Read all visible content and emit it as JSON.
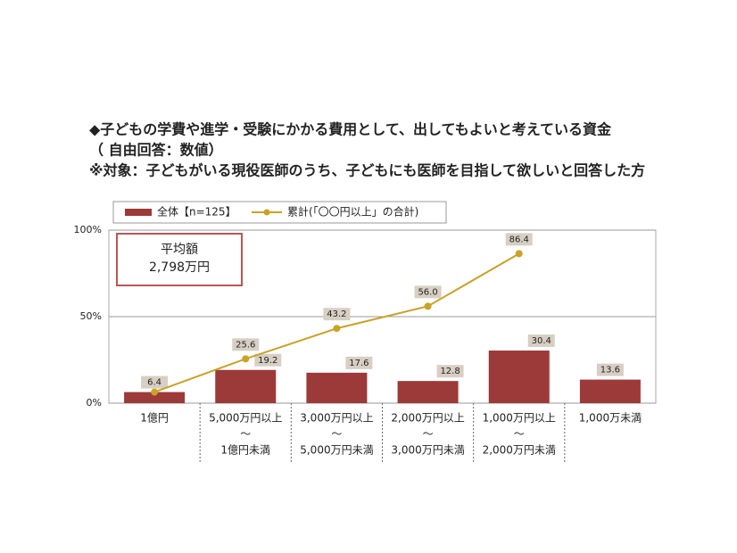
{
  "chart_data": {
    "type": "bar-line",
    "title_lines": [
      "◆子どもの学費や進学・受験にかかる費用として、出してもよいと考えている資金",
      "（ 自由回答：数値）",
      "※対象：子どもがいる現役医師のうち、子どもにも医師を目指して欲しいと回答した方"
    ],
    "annotation": [
      "平均額",
      "2,798万円"
    ],
    "categories": [
      [
        "1億円"
      ],
      [
        "5,000万円以上",
        "～",
        "1億円未満"
      ],
      [
        "3,000万円以上",
        "～",
        "5,000万円未満"
      ],
      [
        "2,000万円以上",
        "～",
        "3,000万円未満"
      ],
      [
        "1,000万円以上",
        "～",
        "2,000万円未満"
      ],
      [
        "1,000万未満"
      ]
    ],
    "series": [
      {
        "name": "全体【n=125】",
        "color": "#9b3a38",
        "kind": "bar",
        "values": [
          6.4,
          19.2,
          17.6,
          12.8,
          30.4,
          13.6
        ]
      },
      {
        "name": "累計(「〇〇円以上」の合計)",
        "color": "#c9a227",
        "kind": "line",
        "values": [
          6.4,
          25.6,
          43.2,
          56.0,
          86.4,
          null
        ],
        "value_labels": [
          null,
          "25.6",
          "43.2",
          "56.0",
          "86.4",
          null
        ]
      }
    ],
    "ylim": [
      0,
      100
    ],
    "yticks": [
      {
        "value": 0,
        "label": "0%"
      },
      {
        "value": 50,
        "label": "50%"
      },
      {
        "value": 100,
        "label": "100%"
      }
    ],
    "grid": true
  }
}
